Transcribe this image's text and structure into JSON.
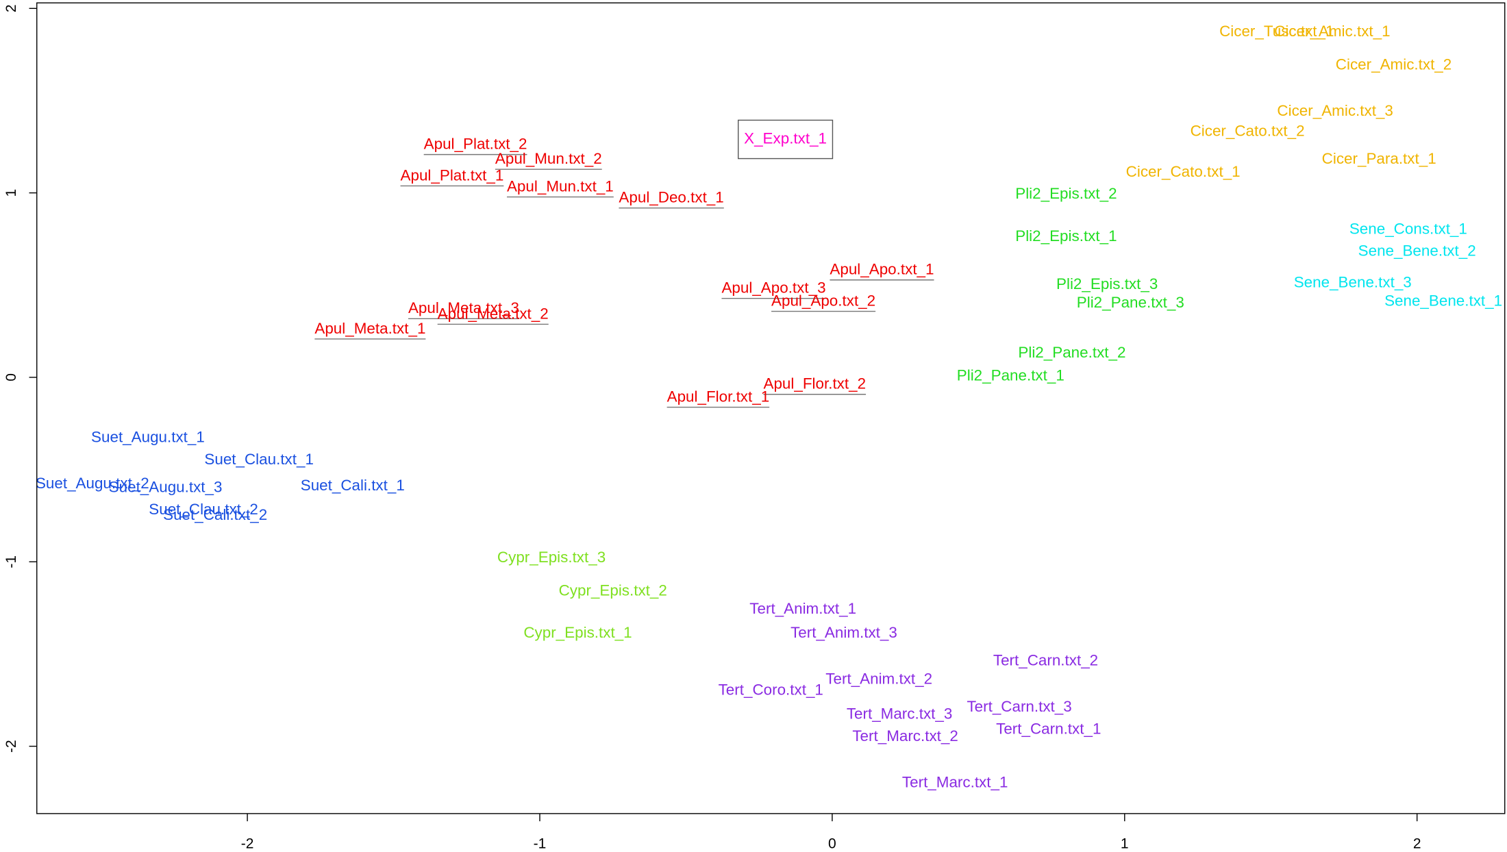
{
  "chart_data": {
    "type": "text-scatter",
    "xlim": [
      -2.72,
      2.3
    ],
    "ylim": [
      -2.365,
      2.03
    ],
    "xticks": [
      -2,
      -1,
      0,
      1,
      2
    ],
    "yticks": [
      -2,
      -1,
      0,
      1,
      2
    ],
    "points": [
      {
        "label": "Cicer_Tusc.txt_1",
        "x": 1.52,
        "y": 1.87,
        "color": "#f0b400"
      },
      {
        "label": "Cicer_Amic.txt_1",
        "x": 1.71,
        "y": 1.87,
        "color": "#f0b400"
      },
      {
        "label": "Cicer_Amic.txt_2",
        "x": 1.92,
        "y": 1.69,
        "color": "#f0b400"
      },
      {
        "label": "Cicer_Amic.txt_3",
        "x": 1.72,
        "y": 1.44,
        "color": "#f0b400"
      },
      {
        "label": "Cicer_Cato.txt_2",
        "x": 1.42,
        "y": 1.33,
        "color": "#f0b400"
      },
      {
        "label": "Cicer_Para.txt_1",
        "x": 1.87,
        "y": 1.18,
        "color": "#f0b400"
      },
      {
        "label": "Cicer_Cato.txt_1",
        "x": 1.2,
        "y": 1.11,
        "color": "#f0b400"
      },
      {
        "label": "X_Exp.txt_1",
        "x": -0.16,
        "y": 1.29,
        "color": "#ff00cc",
        "boxed": true
      },
      {
        "label": "Apul_Plat.txt_2",
        "x": -1.22,
        "y": 1.26,
        "color": "#ee0000",
        "underline": true
      },
      {
        "label": "Apul_Mun.txt_2",
        "x": -0.97,
        "y": 1.18,
        "color": "#ee0000",
        "underline": true
      },
      {
        "label": "Apul_Plat.txt_1",
        "x": -1.3,
        "y": 1.09,
        "color": "#ee0000",
        "underline": true
      },
      {
        "label": "Apul_Mun.txt_1",
        "x": -0.93,
        "y": 1.03,
        "color": "#ee0000",
        "underline": true
      },
      {
        "label": "Apul_Deo.txt_1",
        "x": -0.55,
        "y": 0.97,
        "color": "#ee0000",
        "underline": true
      },
      {
        "label": "Pli2_Epis.txt_2",
        "x": 0.8,
        "y": 0.99,
        "color": "#22dd22"
      },
      {
        "label": "Pli2_Epis.txt_1",
        "x": 0.8,
        "y": 0.76,
        "color": "#22dd22"
      },
      {
        "label": "Sene_Cons.txt_1",
        "x": 1.97,
        "y": 0.8,
        "color": "#00e5ee"
      },
      {
        "label": "Sene_Bene.txt_2",
        "x": 2.0,
        "y": 0.68,
        "color": "#00e5ee"
      },
      {
        "label": "Apul_Apo.txt_1",
        "x": 0.17,
        "y": 0.58,
        "color": "#ee0000",
        "underline": true
      },
      {
        "label": "Apul_Apo.txt_3",
        "x": -0.2,
        "y": 0.48,
        "color": "#ee0000",
        "underline": true
      },
      {
        "label": "Apul_Apo.txt_2",
        "x": -0.03,
        "y": 0.41,
        "color": "#ee0000",
        "underline": true
      },
      {
        "label": "Pli2_Epis.txt_3",
        "x": 0.94,
        "y": 0.5,
        "color": "#22dd22"
      },
      {
        "label": "Pli2_Pane.txt_3",
        "x": 1.02,
        "y": 0.4,
        "color": "#22dd22"
      },
      {
        "label": "Sene_Bene.txt_3",
        "x": 1.78,
        "y": 0.51,
        "color": "#00e5ee"
      },
      {
        "label": "Sene_Bene.txt_1",
        "x": 2.09,
        "y": 0.41,
        "color": "#00e5ee"
      },
      {
        "label": "Apul_Meta.txt_3",
        "x": -1.26,
        "y": 0.37,
        "color": "#ee0000",
        "underline": true
      },
      {
        "label": "Apul_Meta.txt_2",
        "x": -1.16,
        "y": 0.34,
        "color": "#ee0000",
        "underline": true
      },
      {
        "label": "Apul_Meta.txt_1",
        "x": -1.58,
        "y": 0.26,
        "color": "#ee0000",
        "underline": true
      },
      {
        "label": "Pli2_Pane.txt_2",
        "x": 0.82,
        "y": 0.13,
        "color": "#22dd22"
      },
      {
        "label": "Pli2_Pane.txt_1",
        "x": 0.61,
        "y": 0.005,
        "color": "#22dd22"
      },
      {
        "label": "Apul_Flor.txt_2",
        "x": -0.06,
        "y": -0.04,
        "color": "#ee0000",
        "underline": true
      },
      {
        "label": "Apul_Flor.txt_1",
        "x": -0.39,
        "y": -0.11,
        "color": "#ee0000",
        "underline": true
      },
      {
        "label": "Suet_Augu.txt_1",
        "x": -2.34,
        "y": -0.33,
        "color": "#1a50e0"
      },
      {
        "label": "Suet_Clau.txt_1",
        "x": -1.96,
        "y": -0.45,
        "color": "#1a50e0"
      },
      {
        "label": "Suet_Augu.txt_2",
        "x": -2.53,
        "y": -0.58,
        "color": "#1a50e0"
      },
      {
        "label": "Suet_Augu.txt_3",
        "x": -2.28,
        "y": -0.6,
        "color": "#1a50e0"
      },
      {
        "label": "Suet_Cali.txt_1",
        "x": -1.64,
        "y": -0.59,
        "color": "#1a50e0"
      },
      {
        "label": "Suet_Clau.txt_2",
        "x": -2.15,
        "y": -0.72,
        "color": "#1a50e0"
      },
      {
        "label": "Suet_Cali.txt_2",
        "x": -2.11,
        "y": -0.75,
        "color": "#1a50e0"
      },
      {
        "label": "Cypr_Epis.txt_3",
        "x": -0.96,
        "y": -0.98,
        "color": "#7fe020"
      },
      {
        "label": "Cypr_Epis.txt_2",
        "x": -0.75,
        "y": -1.16,
        "color": "#7fe020"
      },
      {
        "label": "Cypr_Epis.txt_1",
        "x": -0.87,
        "y": -1.39,
        "color": "#7fe020"
      },
      {
        "label": "Tert_Anim.txt_1",
        "x": -0.1,
        "y": -1.26,
        "color": "#8a2be2"
      },
      {
        "label": "Tert_Anim.txt_3",
        "x": 0.04,
        "y": -1.39,
        "color": "#8a2be2"
      },
      {
        "label": "Tert_Carn.txt_2",
        "x": 0.73,
        "y": -1.54,
        "color": "#8a2be2"
      },
      {
        "label": "Tert_Anim.txt_2",
        "x": 0.16,
        "y": -1.64,
        "color": "#8a2be2"
      },
      {
        "label": "Tert_Coro.txt_1",
        "x": -0.21,
        "y": -1.7,
        "color": "#8a2be2"
      },
      {
        "label": "Tert_Carn.txt_3",
        "x": 0.64,
        "y": -1.79,
        "color": "#8a2be2"
      },
      {
        "label": "Tert_Marc.txt_3",
        "x": 0.23,
        "y": -1.83,
        "color": "#8a2be2"
      },
      {
        "label": "Tert_Carn.txt_1",
        "x": 0.74,
        "y": -1.91,
        "color": "#8a2be2"
      },
      {
        "label": "Tert_Marc.txt_2",
        "x": 0.25,
        "y": -1.95,
        "color": "#8a2be2"
      },
      {
        "label": "Tert_Marc.txt_1",
        "x": 0.42,
        "y": -2.2,
        "color": "#8a2be2"
      }
    ]
  }
}
